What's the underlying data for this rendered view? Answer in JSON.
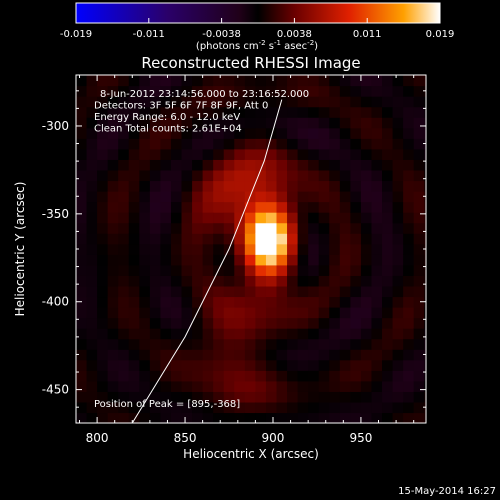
{
  "chart_data": {
    "type": "heatmap",
    "title": "Reconstructed RHESSI Image",
    "xlabel": "Heliocentric X (arcsec)",
    "ylabel": "Heliocentric Y (arcsec)",
    "xlim": [
      788,
      987
    ],
    "ylim": [
      -469,
      -271
    ],
    "x_ticks": [
      800,
      850,
      900,
      950
    ],
    "y_ticks": [
      -300,
      -350,
      -400,
      -450
    ],
    "colorbar": {
      "range": [
        -0.019,
        0.019
      ],
      "ticks": [
        "-0.019",
        "-0.011",
        "-0.0038",
        "0.0038",
        "0.011",
        "0.019"
      ],
      "unit_label": "(photons cm",
      "unit_sup1": "-2",
      "unit_mid": " s",
      "unit_sup2": "-1",
      "unit_mid2": " asec",
      "unit_sup3": "-2",
      "unit_end": ")"
    },
    "annotations": [
      "8-Jun-2012 23:14:56.000 to 23:16:52.000",
      "Detectors: 3F 5F 6F 7F 8F 9F, Att 0",
      "Energy Range: 6.0 - 12.0 keV",
      "Clean     Total counts: 2.61E+04"
    ],
    "peak_label": "Position of Peak = [895,-368]",
    "sources": [
      {
        "x": 895,
        "y": -368,
        "amplitude": 0.019
      },
      {
        "x": 880,
        "y": -345,
        "amplitude": 0.006
      },
      {
        "x": 875,
        "y": -430,
        "amplitude": 0.004
      }
    ],
    "limb_curve": [
      [
        820,
        -469
      ],
      [
        850,
        -420
      ],
      [
        875,
        -370
      ],
      [
        895,
        -320
      ],
      [
        905,
        -285
      ]
    ],
    "footer_date": "15-May-2014 16:27"
  }
}
